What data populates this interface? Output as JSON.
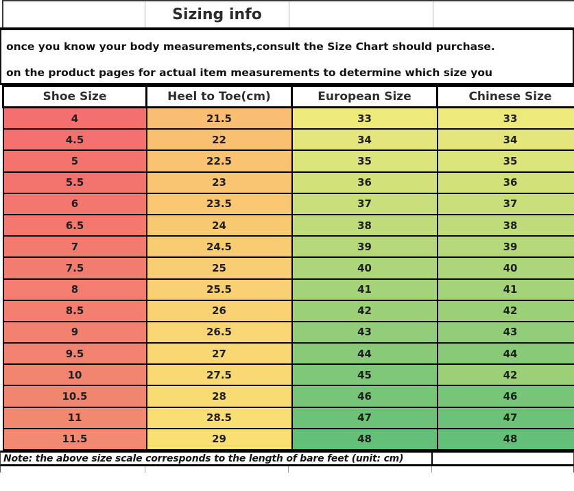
{
  "title": "Sizing info",
  "intro": {
    "line1": "once you know your body measurements,consult the Size Chart should purchase.",
    "line2": "on the product pages for actual item measurements to determine which size you"
  },
  "table": {
    "headers": [
      "Shoe Size",
      "Heel to Toe(cm)",
      "European Size",
      "Chinese Size"
    ],
    "rows": [
      {
        "values": [
          "4",
          "21.5",
          "33",
          "33"
        ],
        "colors": [
          "#F46F6F",
          "#F9BE72",
          "#EDE97B",
          "#EDE97B"
        ]
      },
      {
        "values": [
          "4.5",
          "22",
          "34",
          "34"
        ],
        "colors": [
          "#F4716F",
          "#F9C072",
          "#E4E67B",
          "#E4E67B"
        ]
      },
      {
        "values": [
          "5",
          "22.5",
          "35",
          "35"
        ],
        "colors": [
          "#F4736F",
          "#F9C372",
          "#DBE37B",
          "#DBE37B"
        ]
      },
      {
        "values": [
          "5.5",
          "23",
          "36",
          "36"
        ],
        "colors": [
          "#F3746F",
          "#F9C572",
          "#D2E17A",
          "#D2E17A"
        ]
      },
      {
        "values": [
          "6",
          "23.5",
          "37",
          "37"
        ],
        "colors": [
          "#F3766F",
          "#F9C772",
          "#C8DE7A",
          "#C8DE7A"
        ]
      },
      {
        "values": [
          "6.5",
          "24",
          "38",
          "38"
        ],
        "colors": [
          "#F3786F",
          "#F9C972",
          "#BFDB7A",
          "#BFDB7A"
        ]
      },
      {
        "values": [
          "7",
          "24.5",
          "39",
          "39"
        ],
        "colors": [
          "#F37A6F",
          "#F9CC72",
          "#B6D87A",
          "#B6D87A"
        ]
      },
      {
        "values": [
          "7.5",
          "25",
          "40",
          "40"
        ],
        "colors": [
          "#F37C70",
          "#F9CE72",
          "#ADD57A",
          "#ADD57A"
        ]
      },
      {
        "values": [
          "8",
          "25.5",
          "41",
          "41"
        ],
        "colors": [
          "#F27D70",
          "#F9D073",
          "#A4D379",
          "#A4D379"
        ]
      },
      {
        "values": [
          "8.5",
          "26",
          "42",
          "42"
        ],
        "colors": [
          "#F27F70",
          "#F9D273",
          "#9BD079",
          "#9BD079"
        ]
      },
      {
        "values": [
          "9",
          "26.5",
          "43",
          "43"
        ],
        "colors": [
          "#F28170",
          "#F9D573",
          "#92CD79",
          "#92CD79"
        ]
      },
      {
        "values": [
          "9.5",
          "27",
          "44",
          "44"
        ],
        "colors": [
          "#F28370",
          "#F9D773",
          "#89CA79",
          "#89CA79"
        ]
      },
      {
        "values": [
          "10",
          "27.5",
          "45",
          "42"
        ],
        "colors": [
          "#F28570",
          "#F9D973",
          "#7FC779",
          "#9BD079"
        ]
      },
      {
        "values": [
          "10.5",
          "28",
          "46",
          "46"
        ],
        "colors": [
          "#F18670",
          "#F9DB73",
          "#76C578",
          "#76C578"
        ]
      },
      {
        "values": [
          "11",
          "28.5",
          "47",
          "47"
        ],
        "colors": [
          "#F18870",
          "#F9DE73",
          "#6DC278",
          "#6DC278"
        ]
      },
      {
        "values": [
          "11.5",
          "29",
          "48",
          "48"
        ],
        "colors": [
          "#F18A70",
          "#F9E073",
          "#64BF78",
          "#64BF78"
        ]
      }
    ]
  },
  "note": "Note: the above size scale corresponds to the length of bare feet (unit: cm)",
  "colors": {
    "border_black": "#000000",
    "shoe_col_top": "#F46F6F",
    "shoe_col_bottom": "#F18A70",
    "heel_col_top": "#F9BE72",
    "heel_col_bottom": "#F9E073",
    "size_col_top": "#EDE97B",
    "size_col_bottom": "#64BF78"
  }
}
